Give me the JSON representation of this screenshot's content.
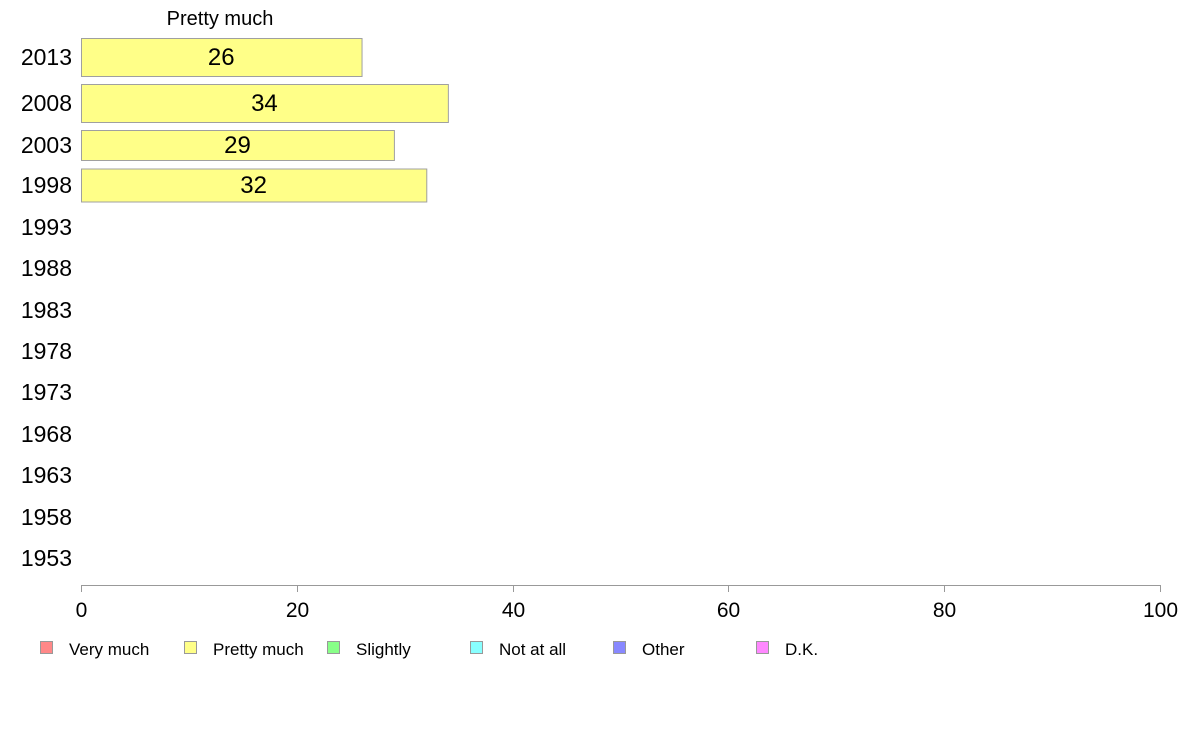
{
  "chart_data": {
    "type": "bar",
    "orientation": "horizontal",
    "title": "Pretty much",
    "categories": [
      "2013",
      "2008",
      "2003",
      "1998",
      "1993",
      "1988",
      "1983",
      "1978",
      "1973",
      "1968",
      "1963",
      "1958",
      "1953"
    ],
    "series": [
      {
        "name": "Pretty much",
        "color": "#ffff88",
        "values": [
          26,
          34,
          29,
          32,
          null,
          null,
          null,
          null,
          null,
          null,
          null,
          null,
          null
        ]
      }
    ],
    "xlim": [
      0,
      100
    ],
    "xticks": [
      0,
      20,
      40,
      60,
      80,
      100
    ],
    "grid": false,
    "legend": {
      "position": "bottom",
      "items": [
        {
          "label": "Very much",
          "color": "#ff8888"
        },
        {
          "label": "Pretty much",
          "color": "#ffff88"
        },
        {
          "label": "Slightly",
          "color": "#88ff88"
        },
        {
          "label": "Not at all",
          "color": "#88ffff"
        },
        {
          "label": "Other",
          "color": "#8888ff"
        },
        {
          "label": "D.K.",
          "color": "#ff88ff"
        }
      ]
    }
  }
}
